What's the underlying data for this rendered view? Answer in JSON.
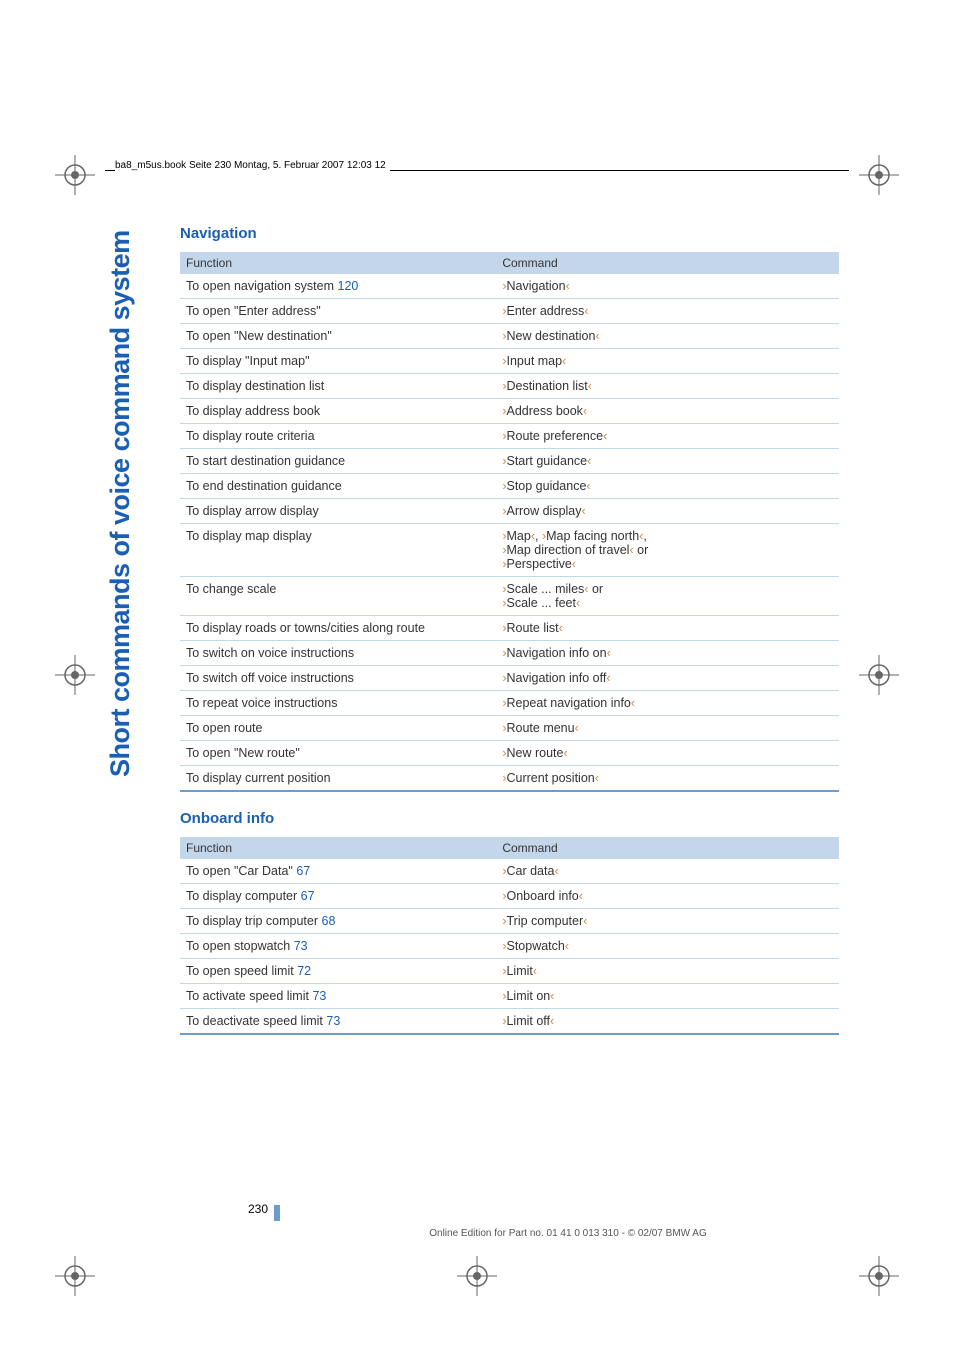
{
  "header_text": "ba8_m5us.book  Seite 230  Montag, 5. Februar 2007  12:03 12",
  "page_number": "230",
  "footer_text": "Online Edition for Part no. 01 41 0 013 310 - © 02/07 BMW AG",
  "side_title": "Short commands of voice command system",
  "colors": {
    "brand_blue": "#1a5fb4",
    "header_bg": "#c4d7ea",
    "row_border": "#c4d7ea",
    "table_bottom": "#6b9bd1",
    "bracket": "#d68b3f",
    "page_ref": "#1a5fb4"
  },
  "fonts": {
    "side_title_size": 27,
    "section_title_size": 15,
    "body_size": 12.5,
    "header_text_size": 10
  },
  "sections": [
    {
      "title": "Navigation",
      "header_function": "Function",
      "header_command": "Command",
      "rows": [
        {
          "fn": "To open navigation system",
          "ref": "120",
          "cmd": "Navigation"
        },
        {
          "fn": "To open \"Enter address\"",
          "cmd": "Enter address"
        },
        {
          "fn": "To open \"New destination\"",
          "cmd": "New destination"
        },
        {
          "fn": "To display \"Input map\"",
          "cmd": "Input map"
        },
        {
          "fn": "To display destination list",
          "cmd": "Destination list"
        },
        {
          "fn": "To display address book",
          "cmd": "Address book"
        },
        {
          "fn": "To display route criteria",
          "cmd": "Route preference"
        },
        {
          "fn": "To start destination guidance",
          "cmd": "Start guidance"
        },
        {
          "fn": "To end destination guidance",
          "cmd": "Stop guidance"
        },
        {
          "fn": "To display arrow display",
          "cmd": "Arrow display"
        },
        {
          "fn": "To display map display",
          "cmd_segments": [
            {
              "t": "Map"
            },
            {
              "sep": ", "
            },
            {
              "t": "Map facing north"
            },
            {
              "sep": ",\n"
            },
            {
              "t": "Map direction of travel"
            },
            {
              "sep": " or\n"
            },
            {
              "t": "Perspective"
            }
          ]
        },
        {
          "fn": "To change scale",
          "cmd_segments": [
            {
              "t": "Scale ... miles"
            },
            {
              "sep": " or\n"
            },
            {
              "t": "Scale ... feet"
            }
          ]
        },
        {
          "fn": "To display roads or towns/cities along route",
          "cmd": "Route list"
        },
        {
          "fn": "To switch on voice instructions",
          "cmd": "Navigation info on"
        },
        {
          "fn": "To switch off voice instructions",
          "cmd": "Navigation info off"
        },
        {
          "fn": "To repeat voice instructions",
          "cmd": "Repeat navigation info"
        },
        {
          "fn": "To open route",
          "cmd": "Route menu"
        },
        {
          "fn": "To open \"New route\"",
          "cmd": "New route"
        },
        {
          "fn": "To display current position",
          "cmd": "Current position"
        }
      ]
    },
    {
      "title": "Onboard info",
      "header_function": "Function",
      "header_command": "Command",
      "rows": [
        {
          "fn": "To open \"Car Data\"",
          "ref": "67",
          "cmd": "Car data"
        },
        {
          "fn": "To display computer",
          "ref": "67",
          "cmd": "Onboard info"
        },
        {
          "fn": "To display trip computer",
          "ref": "68",
          "cmd": "Trip computer"
        },
        {
          "fn": "To open stopwatch",
          "ref": "73",
          "cmd": "Stopwatch"
        },
        {
          "fn": "To open speed limit",
          "ref": "72",
          "cmd": "Limit"
        },
        {
          "fn": "To activate speed limit",
          "ref": "73",
          "cmd": "Limit on"
        },
        {
          "fn": "To deactivate speed limit",
          "ref": "73",
          "cmd": "Limit off"
        }
      ]
    }
  ]
}
